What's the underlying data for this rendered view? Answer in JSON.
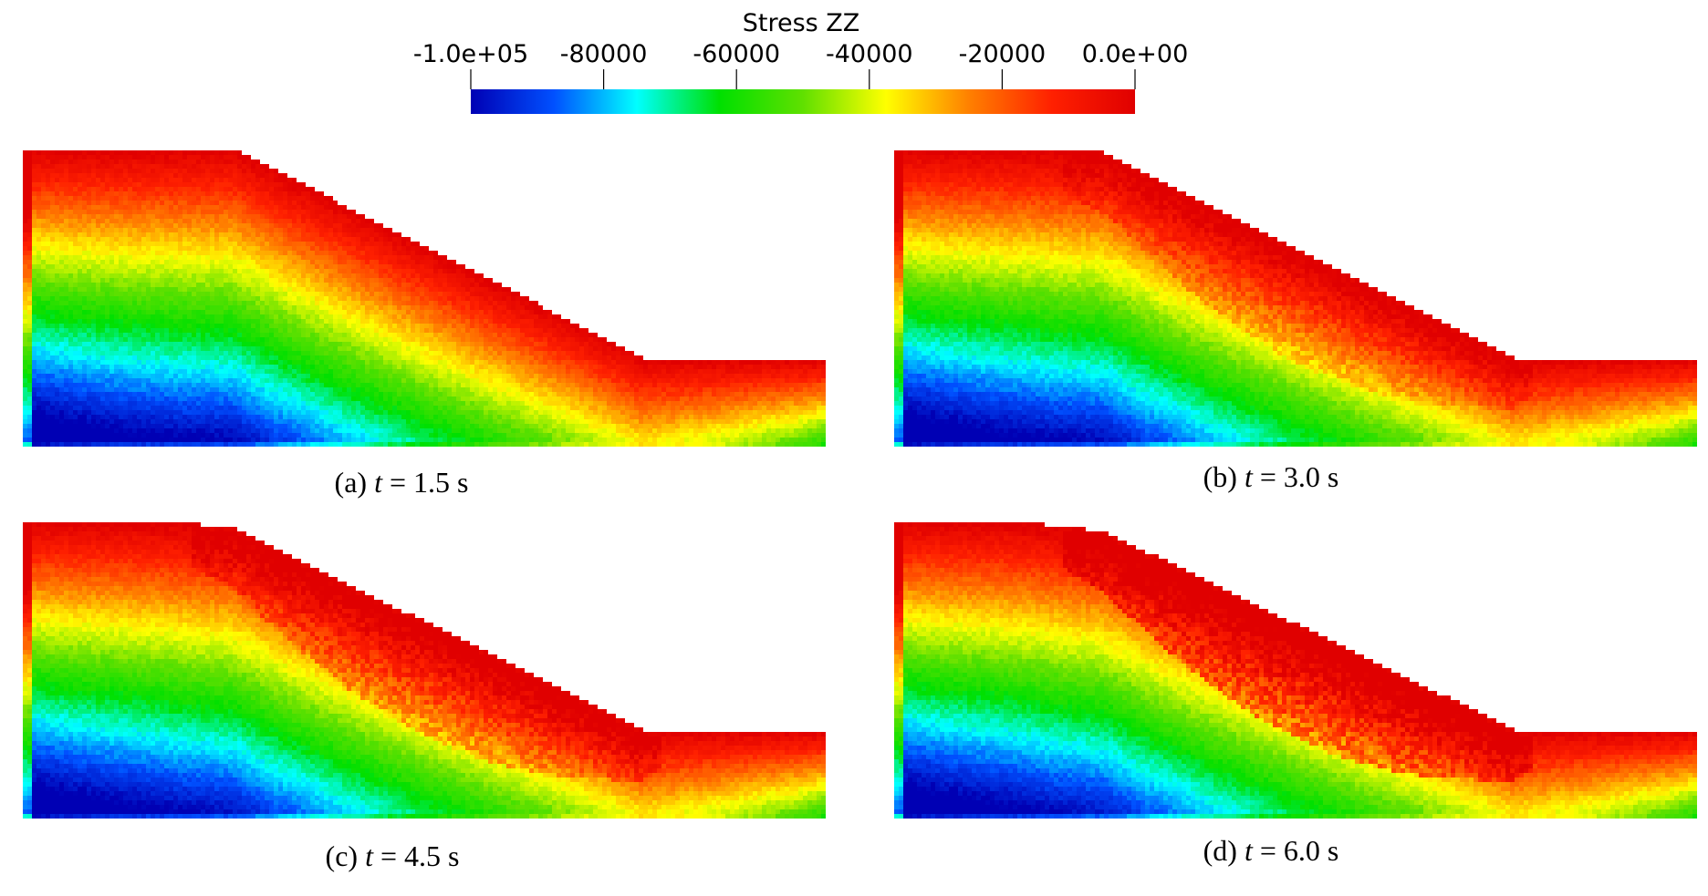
{
  "colorbar": {
    "title": "Stress ZZ",
    "ticks": [
      "-1.0e+05",
      "-80000",
      "-60000",
      "-40000",
      "-20000",
      "0.0e+00"
    ],
    "min": -100000,
    "max": 0,
    "colormap": [
      "#0000b4",
      "#0050ff",
      "#00ffff",
      "#00e000",
      "#60e000",
      "#ffff00",
      "#ff8000",
      "#ff2000",
      "#e00000"
    ]
  },
  "panels": [
    {
      "label": "(a)",
      "var": "t",
      "eq": " = 1.5 s",
      "failure": 0.0
    },
    {
      "label": "(b)",
      "var": "t",
      "eq": " = 3.0 s",
      "failure": 0.35
    },
    {
      "label": "(c)",
      "var": "t",
      "eq": " = 4.5 s",
      "failure": 0.6
    },
    {
      "label": "(d)",
      "var": "t",
      "eq": " = 6.0 s",
      "failure": 1.0
    }
  ]
}
